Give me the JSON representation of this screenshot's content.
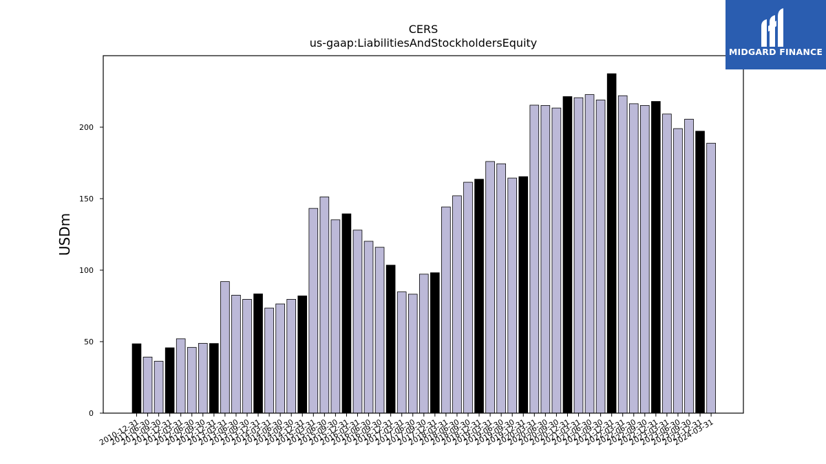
{
  "brand": {
    "name": "MIDGARD FINANCE",
    "logo_icon": "midgard-m-logo-icon",
    "color": "#2a5db0"
  },
  "chart_data": {
    "type": "bar",
    "title": "CERS",
    "subtitle": "us-gaap:LiabilitiesAndStockholdersEquity",
    "xlabel": "",
    "ylabel": "USDm",
    "ylim": [
      0,
      250
    ],
    "yticks": [
      0,
      50,
      100,
      150,
      200
    ],
    "grid": false,
    "legend": "none",
    "colors": {
      "annual": "#000000",
      "quarterly": "#bcb9d8",
      "edge": "#000000"
    },
    "categories": [
      "2010-12-31",
      "2011-06-30",
      "2011-09-30",
      "2011-12-31",
      "2012-03-31",
      "2012-06-30",
      "2012-09-30",
      "2012-12-31",
      "2013-03-31",
      "2013-06-30",
      "2013-09-30",
      "2013-12-31",
      "2014-03-31",
      "2014-06-30",
      "2014-09-30",
      "2014-12-31",
      "2015-03-31",
      "2015-06-30",
      "2015-09-30",
      "2015-12-31",
      "2016-03-31",
      "2016-06-30",
      "2016-09-30",
      "2016-12-31",
      "2017-03-31",
      "2017-06-30",
      "2017-09-30",
      "2017-12-31",
      "2018-03-31",
      "2018-06-30",
      "2018-09-30",
      "2018-12-31",
      "2019-03-31",
      "2019-06-30",
      "2019-09-30",
      "2019-12-31",
      "2020-03-31",
      "2020-06-30",
      "2020-09-30",
      "2020-12-31",
      "2021-03-31",
      "2021-06-30",
      "2021-09-30",
      "2021-12-31",
      "2022-03-31",
      "2022-06-30",
      "2022-09-30",
      "2022-12-31",
      "2023-03-31",
      "2023-06-30",
      "2023-09-30",
      "2023-12-31",
      "2024-03-31"
    ],
    "values": [
      48.5,
      39.2,
      36.3,
      45.7,
      52.0,
      46.0,
      48.8,
      48.7,
      92.0,
      82.5,
      79.6,
      83.4,
      73.5,
      76.4,
      79.6,
      82.0,
      143.2,
      151.2,
      135.2,
      139.4,
      128.0,
      120.2,
      116.0,
      103.5,
      84.8,
      83.2,
      97.2,
      98.2,
      144.2,
      152.0,
      161.5,
      163.6,
      176.0,
      174.4,
      164.4,
      165.4,
      215.4,
      215.2,
      213.4,
      221.4,
      220.6,
      222.8,
      219.0,
      237.4,
      222.0,
      216.4,
      215.2,
      218.0,
      209.2,
      199.0,
      205.6,
      197.2,
      188.8
    ],
    "annual": [
      true,
      false,
      false,
      true,
      false,
      false,
      false,
      true,
      false,
      false,
      false,
      true,
      false,
      false,
      false,
      true,
      false,
      false,
      false,
      true,
      false,
      false,
      false,
      true,
      false,
      false,
      false,
      true,
      false,
      false,
      false,
      true,
      false,
      false,
      false,
      true,
      false,
      false,
      false,
      true,
      false,
      false,
      false,
      true,
      false,
      false,
      false,
      true,
      false,
      false,
      false,
      true,
      false
    ]
  }
}
